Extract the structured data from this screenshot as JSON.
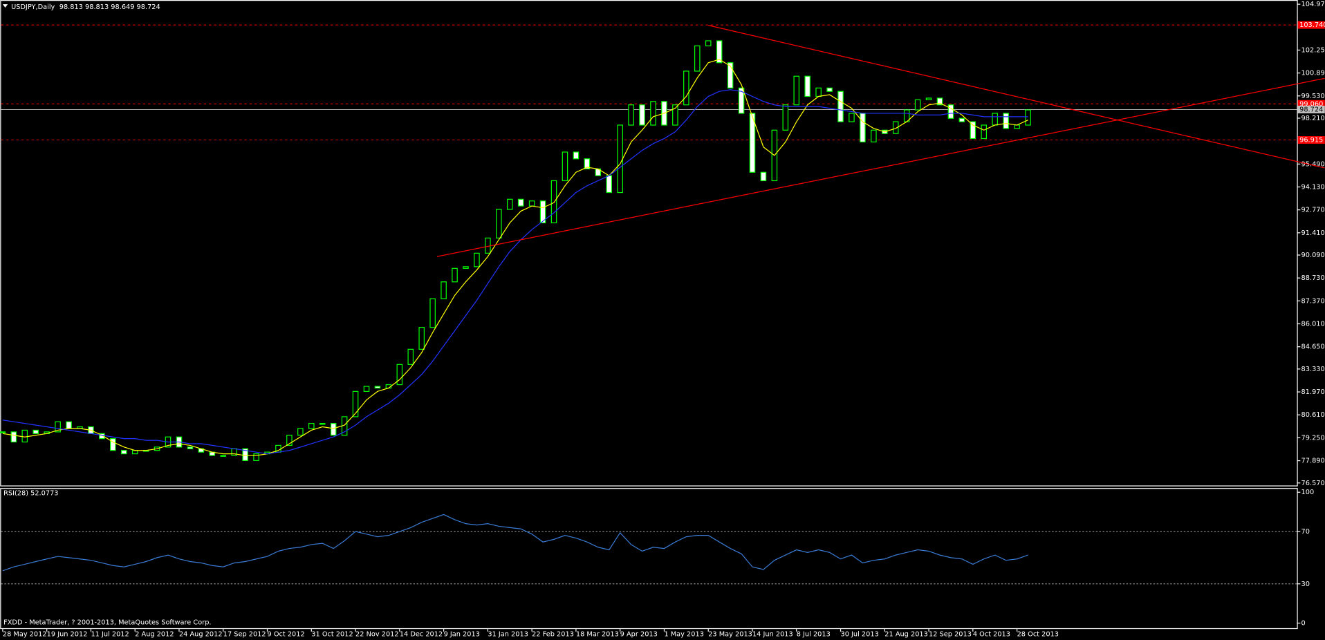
{
  "chart_data": [
    {
      "type": "candlestick",
      "title": "USDJPY,Daily",
      "subtitle": "98.813 98.813 98.649 98.724",
      "categories": [
        "28 May 2012",
        null,
        null,
        null,
        "19 Jun 2012",
        null,
        null,
        null,
        "11 Jul 2012",
        null,
        null,
        null,
        "2 Aug 2012",
        null,
        null,
        null,
        "24 Aug 2012",
        null,
        null,
        null,
        "17 Sep 2012",
        null,
        null,
        null,
        "9 Oct 2012",
        null,
        null,
        null,
        "31 Oct 2012",
        null,
        null,
        null,
        "22 Nov 2012",
        null,
        null,
        null,
        "14 Dec 2012",
        null,
        null,
        null,
        "9 Jan 2013",
        null,
        null,
        null,
        "31 Jan 2013",
        null,
        null,
        null,
        "22 Feb 2013",
        null,
        null,
        null,
        "18 Mar 2013",
        null,
        null,
        null,
        "9 Apr 2013",
        null,
        null,
        null,
        "1 May 2013",
        null,
        null,
        null,
        "23 May 2013",
        null,
        null,
        null,
        "14 Jun 2013",
        null,
        null,
        null,
        "8 Jul 2013",
        null,
        null,
        null,
        "30 Jul 2013",
        null,
        null,
        null,
        "21 Aug 2013",
        null,
        null,
        null,
        "12 Sep 2013",
        null,
        null,
        null,
        "4 Oct 2013",
        null,
        null,
        null,
        "28 Oct 2013",
        null
      ],
      "series": [
        {
          "style": "candle",
          "color": "#00ff00",
          "values": [
            79.6,
            79.0,
            79.7,
            79.5,
            79.6,
            80.2,
            79.8,
            79.9,
            79.5,
            79.2,
            78.5,
            78.3,
            78.5,
            78.5,
            78.7,
            79.3,
            78.7,
            78.6,
            78.4,
            78.2,
            78.2,
            78.6,
            77.9,
            78.3,
            78.4,
            78.8,
            79.4,
            79.8,
            80.1,
            80.1,
            79.4,
            80.5,
            82.0,
            82.3,
            82.2,
            82.4,
            83.6,
            84.5,
            85.8,
            87.5,
            88.5,
            89.3,
            89.4,
            90.2,
            91.1,
            92.8,
            93.4,
            93.0,
            93.3,
            92.0,
            94.5,
            96.2,
            95.8,
            95.2,
            94.8,
            93.8,
            97.8,
            99.0,
            97.8,
            99.2,
            97.8,
            99.0,
            101.0,
            102.5,
            102.8,
            101.5,
            100.0,
            98.5,
            95.0,
            94.5,
            97.5,
            99.0,
            100.7,
            99.5,
            100.0,
            99.8,
            98.0,
            98.5,
            96.8,
            97.5,
            97.3,
            98.0,
            98.7,
            99.3,
            99.4,
            99.0,
            98.2,
            98.0,
            97.0,
            97.8,
            98.5,
            97.6,
            97.8,
            98.7
          ]
        },
        {
          "style": "line",
          "color": "#ffff00",
          "values": [
            79.5,
            79.4,
            79.3,
            79.4,
            79.5,
            79.7,
            79.8,
            79.8,
            79.7,
            79.4,
            79.0,
            78.7,
            78.5,
            78.5,
            78.6,
            78.8,
            78.9,
            78.8,
            78.6,
            78.4,
            78.3,
            78.3,
            78.2,
            78.2,
            78.3,
            78.5,
            78.9,
            79.3,
            79.7,
            79.9,
            79.8,
            80.0,
            80.7,
            81.5,
            82.0,
            82.2,
            82.7,
            83.4,
            84.3,
            85.5,
            86.6,
            87.7,
            88.5,
            89.2,
            90.0,
            91.0,
            92.0,
            92.7,
            93.0,
            92.9,
            93.2,
            94.2,
            95.0,
            95.3,
            95.2,
            94.8,
            95.5,
            96.8,
            97.5,
            98.3,
            98.5,
            98.8,
            99.5,
            100.6,
            101.5,
            101.7,
            101.3,
            100.2,
            98.3,
            96.5,
            96.0,
            96.8,
            98.0,
            99.0,
            99.5,
            99.6,
            99.2,
            98.8,
            98.0,
            97.6,
            97.4,
            97.6,
            98.0,
            98.6,
            99.0,
            99.1,
            98.8,
            98.4,
            97.8,
            97.5,
            97.8,
            97.9,
            97.8,
            98.1
          ]
        },
        {
          "style": "line",
          "color": "#2233ff",
          "values": [
            80.3,
            80.2,
            80.1,
            80.0,
            79.9,
            79.8,
            79.7,
            79.6,
            79.5,
            79.4,
            79.3,
            79.2,
            79.2,
            79.1,
            79.1,
            79.0,
            79.0,
            78.9,
            78.9,
            78.8,
            78.7,
            78.6,
            78.5,
            78.4,
            78.3,
            78.4,
            78.5,
            78.7,
            78.9,
            79.1,
            79.3,
            79.6,
            80.0,
            80.5,
            80.9,
            81.3,
            81.8,
            82.4,
            83.0,
            83.8,
            84.7,
            85.6,
            86.5,
            87.4,
            88.4,
            89.4,
            90.3,
            91.0,
            91.6,
            92.1,
            92.6,
            93.2,
            93.8,
            94.2,
            94.5,
            94.8,
            95.3,
            95.8,
            96.3,
            96.7,
            97.0,
            97.4,
            98.1,
            98.9,
            99.5,
            99.8,
            99.9,
            99.8,
            99.5,
            99.2,
            99.0,
            98.9,
            98.9,
            98.9,
            98.9,
            98.8,
            98.7,
            98.6,
            98.5,
            98.5,
            98.5,
            98.5,
            98.5,
            98.4,
            98.4,
            98.4,
            98.5,
            98.5,
            98.4,
            98.3,
            98.3,
            98.3,
            98.3,
            98.3
          ]
        }
      ],
      "ylim": [
        76.57,
        104.97
      ],
      "yticks": [
        {
          "value": 104.97,
          "label": "104.970"
        },
        {
          "value": 102.25,
          "label": "102.250"
        },
        {
          "value": 100.89,
          "label": "100.890"
        },
        {
          "value": 99.53,
          "label": "99.530"
        },
        {
          "value": 98.21,
          "label": "98.210"
        },
        {
          "value": 95.49,
          "label": "95.490"
        },
        {
          "value": 94.13,
          "label": "94.130"
        },
        {
          "value": 92.77,
          "label": "92.770"
        },
        {
          "value": 91.41,
          "label": "91.410"
        },
        {
          "value": 90.09,
          "label": "90.090"
        },
        {
          "value": 88.73,
          "label": "88.730"
        },
        {
          "value": 87.37,
          "label": "87.370"
        },
        {
          "value": 86.01,
          "label": "86.010"
        },
        {
          "value": 84.65,
          "label": "84.650"
        },
        {
          "value": 83.33,
          "label": "83.330"
        },
        {
          "value": 81.97,
          "label": "81.970"
        },
        {
          "value": 80.61,
          "label": "80.610"
        },
        {
          "value": 79.25,
          "label": "79.250"
        },
        {
          "value": 77.89,
          "label": "77.890"
        },
        {
          "value": 76.57,
          "label": "76.570"
        }
      ],
      "hlines": [
        {
          "value": 103.74,
          "label": "103.740",
          "color": "#ff0000",
          "dashed": true
        },
        {
          "value": 99.06,
          "label": "99.060",
          "color": "#ff0000",
          "dashed": true
        },
        {
          "value": 98.724,
          "label": "98.724",
          "color": "#c0c0c0",
          "dashed": false
        },
        {
          "value": 96.915,
          "label": "96.915",
          "color": "#ff0000",
          "dashed": true
        }
      ],
      "trendlines": [
        {
          "color": "#ff0000",
          "x": [
            39.4,
            119.9
          ],
          "y": [
            90.0,
            100.57
          ]
        },
        {
          "color": "#ff0000",
          "x": [
            64.0,
            119.9
          ],
          "y": [
            103.72,
            95.26
          ]
        }
      ],
      "grid": false,
      "footer": "FXDD - MetaTrader, ? 2001-2013, MetaQuotes Software Corp."
    },
    {
      "type": "line",
      "title": "RSI(28) 52.0773",
      "color": "#3a7bd5",
      "values": [
        40,
        43,
        45,
        47,
        49,
        51,
        50,
        49,
        48,
        46,
        44,
        43,
        45,
        47,
        50,
        52,
        49,
        47,
        46,
        44,
        43,
        46,
        47,
        49,
        51,
        55,
        57,
        58,
        60,
        61,
        57,
        63,
        70,
        68,
        66,
        67,
        70,
        73,
        77,
        80,
        83,
        79,
        76,
        75,
        76,
        74,
        73,
        72,
        68,
        62,
        64,
        67,
        65,
        62,
        58,
        56,
        69,
        60,
        55,
        58,
        57,
        62,
        66,
        67,
        67,
        62,
        57,
        53,
        43,
        41,
        48,
        52,
        56,
        54,
        56,
        54,
        49,
        52,
        46,
        48,
        49,
        52,
        54,
        56,
        55,
        52,
        50,
        49,
        45,
        49,
        52,
        48,
        49,
        52
      ],
      "ylim": [
        0,
        100
      ],
      "yticks": [
        0,
        30,
        70,
        100
      ],
      "dashed_ticks": [
        30,
        70
      ],
      "grid": false
    }
  ]
}
